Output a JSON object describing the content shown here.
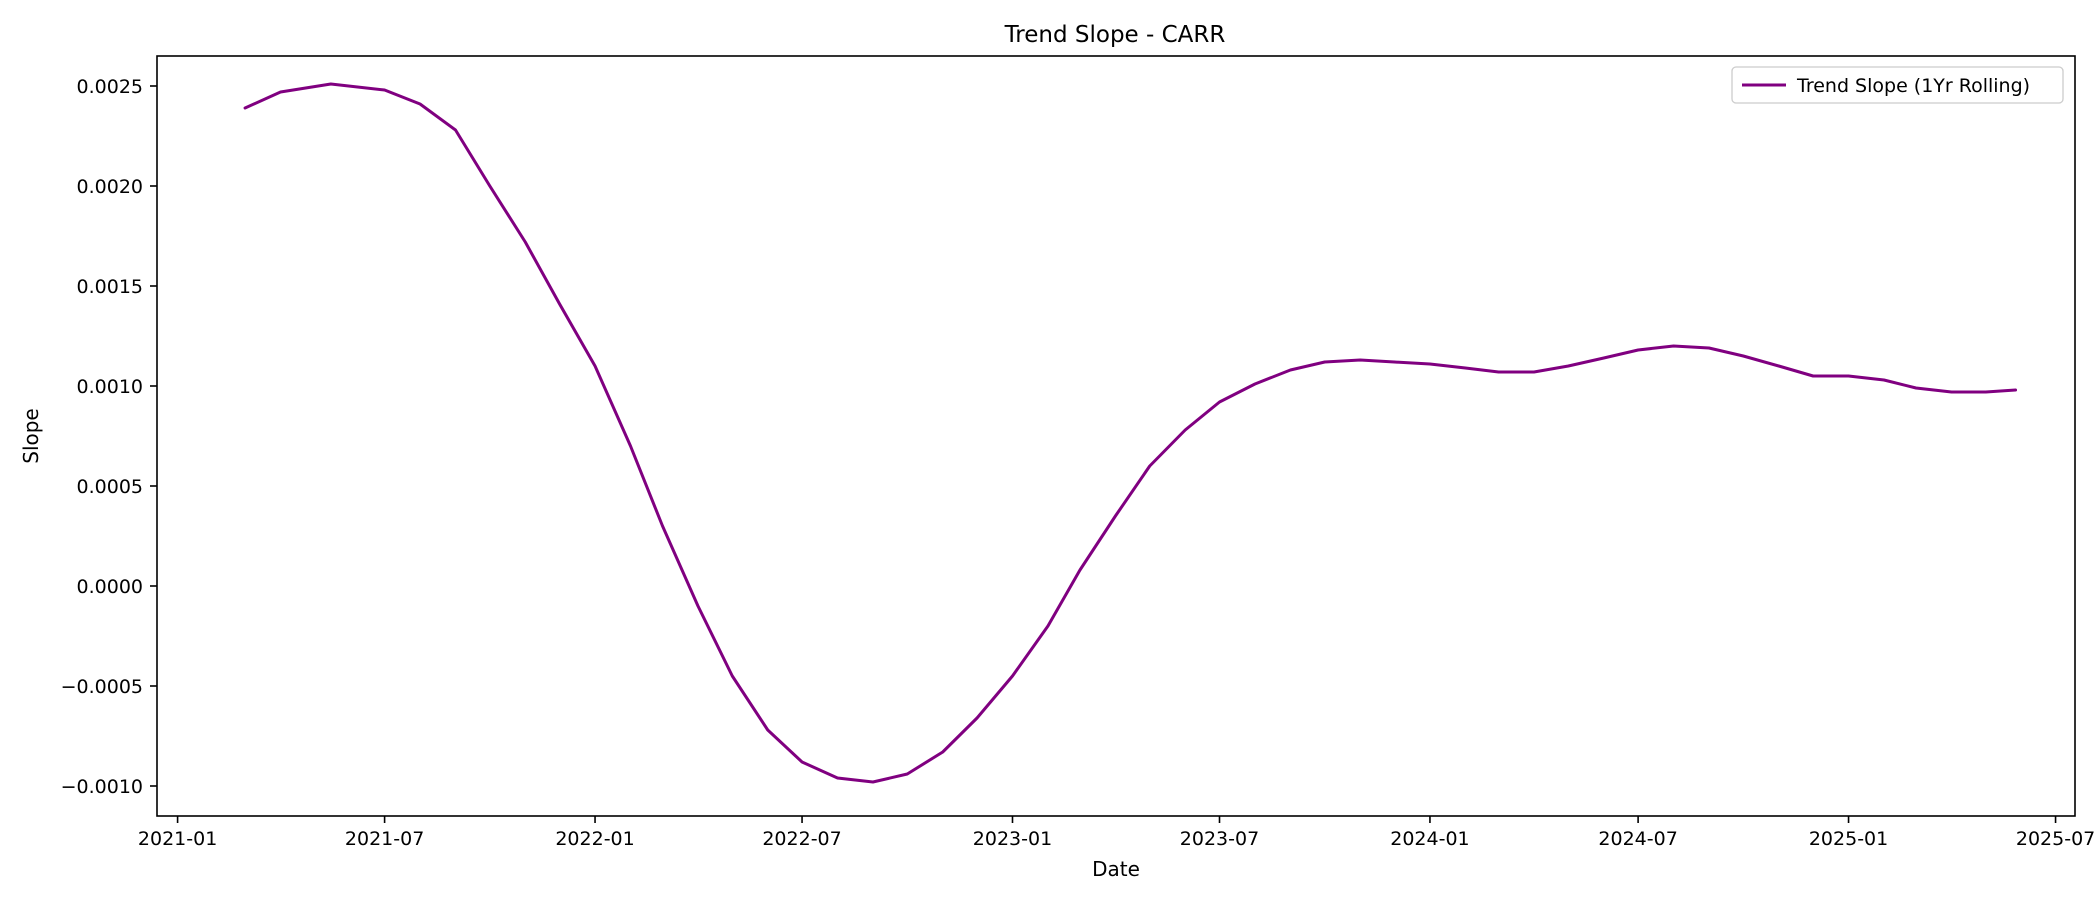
{
  "chart_data": {
    "type": "line",
    "title": "Trend Slope - CARR",
    "xlabel": "Date",
    "ylabel": "Slope",
    "x_axis_type": "date",
    "xlim": [
      "2020-12-14",
      "2025-07-18"
    ],
    "ylim": [
      -0.00115,
      0.00265
    ],
    "x_ticks": [
      "2021-01-01",
      "2021-07-01",
      "2022-01-01",
      "2022-07-01",
      "2023-01-01",
      "2023-07-01",
      "2024-01-01",
      "2024-07-01",
      "2025-01-01",
      "2025-07-01"
    ],
    "x_tick_labels": [
      "2021-01",
      "2021-07",
      "2022-01",
      "2022-07",
      "2023-01",
      "2023-07",
      "2024-01",
      "2024-07",
      "2025-01",
      "2025-07"
    ],
    "y_ticks": [
      -0.001,
      -0.0005,
      0.0,
      0.0005,
      0.001,
      0.0015,
      0.002,
      0.0025
    ],
    "y_tick_labels": [
      "−0.0010",
      "−0.0005",
      "0.0000",
      "0.0005",
      "0.0010",
      "0.0015",
      "0.0020",
      "0.0025"
    ],
    "grid": false,
    "legend_position": "top-right",
    "series": [
      {
        "name": "Trend Slope (1Yr Rolling)",
        "color": "#800080",
        "points": [
          [
            "2021-03-01",
            0.00239
          ],
          [
            "2021-04-01",
            0.00247
          ],
          [
            "2021-05-15",
            0.00251
          ],
          [
            "2021-07-01",
            0.00248
          ],
          [
            "2021-08-01",
            0.00241
          ],
          [
            "2021-09-01",
            0.00228
          ],
          [
            "2021-10-01",
            0.002
          ],
          [
            "2021-11-01",
            0.00172
          ],
          [
            "2021-12-01",
            0.00141
          ],
          [
            "2022-01-01",
            0.0011
          ],
          [
            "2022-02-01",
            0.0007
          ],
          [
            "2022-03-01",
            0.0003
          ],
          [
            "2022-04-01",
            -0.0001
          ],
          [
            "2022-05-01",
            -0.00045
          ],
          [
            "2022-06-01",
            -0.00072
          ],
          [
            "2022-07-01",
            -0.00088
          ],
          [
            "2022-08-01",
            -0.00096
          ],
          [
            "2022-09-01",
            -0.00098
          ],
          [
            "2022-10-01",
            -0.00094
          ],
          [
            "2022-11-01",
            -0.00083
          ],
          [
            "2022-12-01",
            -0.00066
          ],
          [
            "2023-01-01",
            -0.00045
          ],
          [
            "2023-02-01",
            -0.0002
          ],
          [
            "2023-03-01",
            8e-05
          ],
          [
            "2023-04-01",
            0.00035
          ],
          [
            "2023-05-01",
            0.0006
          ],
          [
            "2023-06-01",
            0.00078
          ],
          [
            "2023-07-01",
            0.00092
          ],
          [
            "2023-08-01",
            0.00101
          ],
          [
            "2023-09-01",
            0.00108
          ],
          [
            "2023-10-01",
            0.00112
          ],
          [
            "2023-11-01",
            0.00113
          ],
          [
            "2023-12-01",
            0.00112
          ],
          [
            "2024-01-01",
            0.00111
          ],
          [
            "2024-02-01",
            0.00109
          ],
          [
            "2024-03-01",
            0.00107
          ],
          [
            "2024-04-01",
            0.00107
          ],
          [
            "2024-05-01",
            0.0011
          ],
          [
            "2024-06-01",
            0.00114
          ],
          [
            "2024-07-01",
            0.00118
          ],
          [
            "2024-08-01",
            0.0012
          ],
          [
            "2024-09-01",
            0.00119
          ],
          [
            "2024-10-01",
            0.00115
          ],
          [
            "2024-11-01",
            0.0011
          ],
          [
            "2024-12-01",
            0.00105
          ],
          [
            "2025-01-01",
            0.00105
          ],
          [
            "2025-02-01",
            0.00103
          ],
          [
            "2025-03-01",
            0.00099
          ],
          [
            "2025-04-01",
            0.00097
          ],
          [
            "2025-05-01",
            0.00097
          ],
          [
            "2025-05-27",
            0.00098
          ]
        ]
      }
    ]
  }
}
